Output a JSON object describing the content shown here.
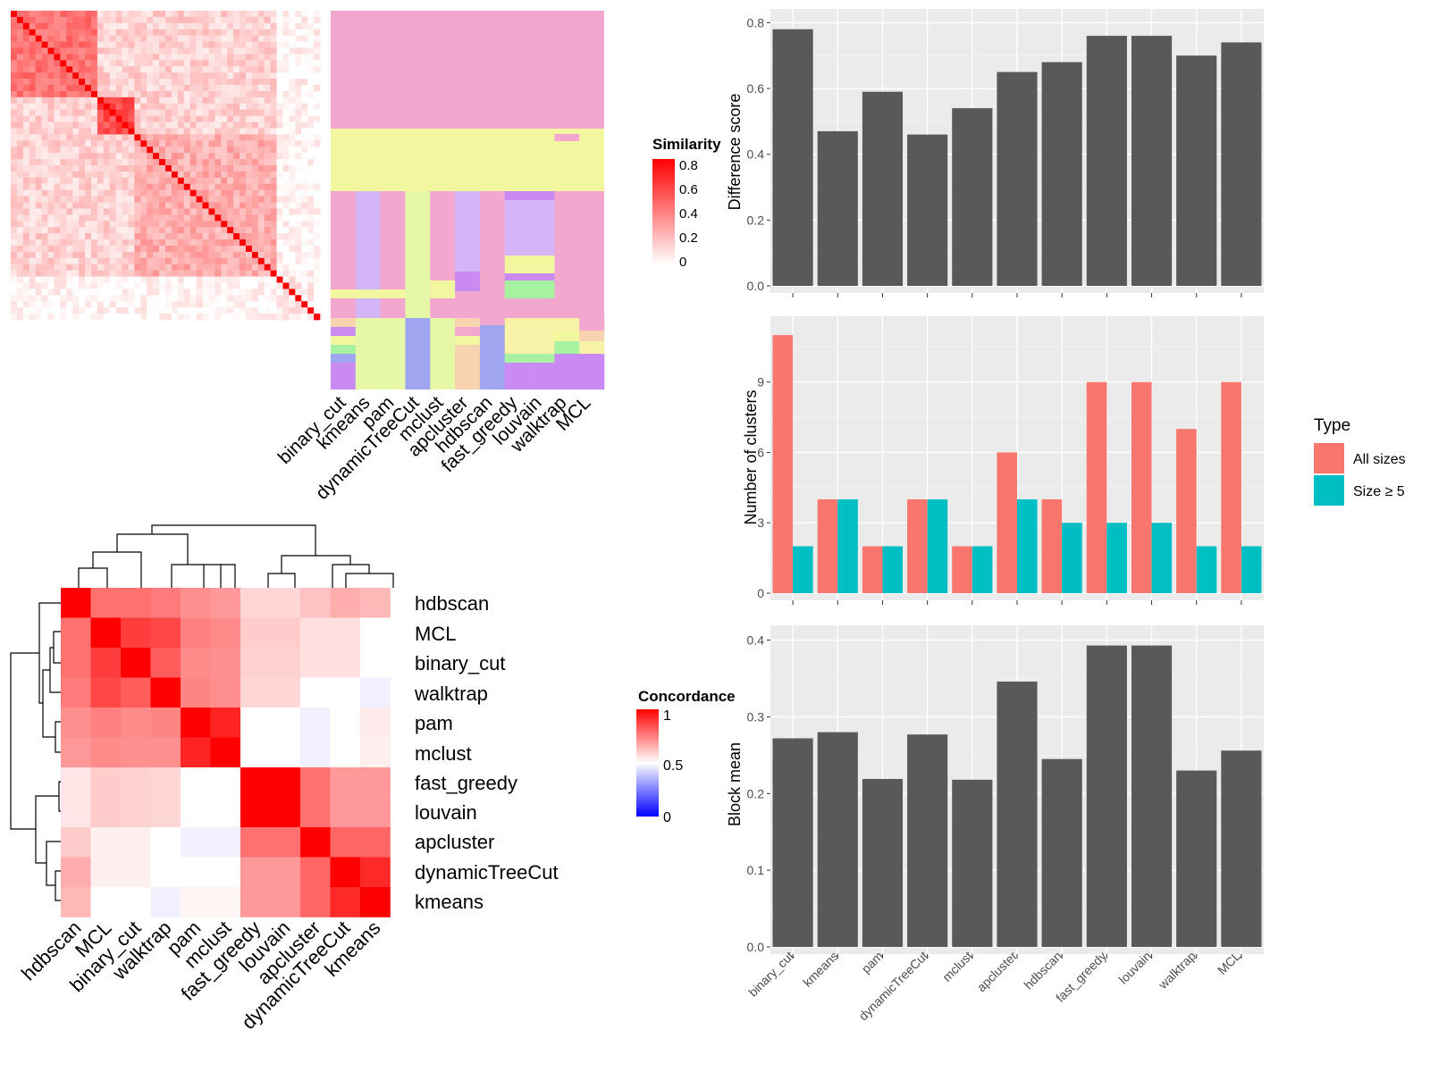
{
  "colors": {
    "panel_bg": "#ebebeb",
    "grid_major": "#ffffff",
    "bar": "#595959",
    "all_sizes": "#f8766d",
    "size_ge5": "#00bfc4",
    "heat_high": "#ff0000",
    "heat_mid": "#ffffff",
    "heat_low": "#0000ff"
  },
  "chart_data": [
    {
      "id": "similarity_heatmap",
      "type": "heatmap",
      "legend_title": "Similarity",
      "legend_ticks": [
        "0.8",
        "0.6",
        "0.4",
        "0.2",
        "0"
      ],
      "n_cells": 50,
      "value_range": [
        0,
        0.85
      ]
    },
    {
      "id": "cluster_assignment_heatmap",
      "type": "heatmap",
      "columns": [
        "binary_cut",
        "kmeans",
        "pam",
        "dynamicTreeCut",
        "mclust",
        "apcluster",
        "hdbscan",
        "fast_greedy",
        "louvain",
        "walktrap",
        "MCL"
      ],
      "n_rows": 50
    },
    {
      "id": "concordance_heatmap",
      "type": "heatmap",
      "legend_title": "Concordance",
      "legend_ticks": [
        "1",
        "0.5",
        "0"
      ],
      "rows": [
        "hdbscan",
        "MCL",
        "binary_cut",
        "walktrap",
        "pam",
        "mclust",
        "fast_greedy",
        "louvain",
        "apcluster",
        "dynamicTreeCut",
        "kmeans"
      ],
      "columns": [
        "hdbscan",
        "MCL",
        "binary_cut",
        "walktrap",
        "pam",
        "mclust",
        "fast_greedy",
        "louvain",
        "apcluster",
        "dynamicTreeCut",
        "kmeans"
      ],
      "values": [
        [
          1.0,
          0.78,
          0.78,
          0.76,
          0.72,
          0.7,
          0.58,
          0.58,
          0.62,
          0.66,
          0.64
        ],
        [
          0.78,
          1.0,
          0.88,
          0.86,
          0.75,
          0.73,
          0.6,
          0.6,
          0.56,
          0.56,
          0.5
        ],
        [
          0.78,
          0.88,
          1.0,
          0.82,
          0.73,
          0.72,
          0.59,
          0.59,
          0.56,
          0.56,
          0.5
        ],
        [
          0.76,
          0.86,
          0.82,
          1.0,
          0.74,
          0.72,
          0.58,
          0.58,
          0.5,
          0.5,
          0.47
        ],
        [
          0.72,
          0.75,
          0.73,
          0.74,
          1.0,
          0.93,
          0.5,
          0.5,
          0.47,
          0.5,
          0.54
        ],
        [
          0.7,
          0.73,
          0.72,
          0.72,
          0.93,
          1.0,
          0.5,
          0.5,
          0.47,
          0.5,
          0.53
        ],
        [
          0.55,
          0.6,
          0.59,
          0.58,
          0.5,
          0.5,
          1.0,
          1.0,
          0.78,
          0.7,
          0.7
        ],
        [
          0.55,
          0.6,
          0.59,
          0.58,
          0.5,
          0.5,
          1.0,
          1.0,
          0.78,
          0.7,
          0.7
        ],
        [
          0.6,
          0.53,
          0.53,
          0.5,
          0.47,
          0.47,
          0.78,
          0.78,
          1.0,
          0.8,
          0.8
        ],
        [
          0.66,
          0.53,
          0.53,
          0.5,
          0.5,
          0.5,
          0.7,
          0.7,
          0.8,
          1.0,
          0.92
        ],
        [
          0.64,
          0.5,
          0.5,
          0.47,
          0.52,
          0.52,
          0.7,
          0.7,
          0.8,
          0.92,
          1.0
        ]
      ]
    },
    {
      "id": "difference_score",
      "type": "bar",
      "categories": [
        "binary_cut",
        "kmeans",
        "pam",
        "dynamicTreeCut",
        "mclust",
        "apcluster",
        "hdbscan",
        "fast_greedy",
        "louvain",
        "walktrap",
        "MCL"
      ],
      "values": [
        0.78,
        0.47,
        0.59,
        0.46,
        0.54,
        0.65,
        0.68,
        0.76,
        0.76,
        0.7,
        0.74
      ],
      "ylabel": "Difference score",
      "ylim": [
        0,
        0.82
      ],
      "yticks": [
        "0.0",
        "0.2",
        "0.4",
        "0.6",
        "0.8"
      ],
      "grid": true
    },
    {
      "id": "number_of_clusters",
      "type": "bar",
      "categories": [
        "binary_cut",
        "kmeans",
        "pam",
        "dynamicTreeCut",
        "mclust",
        "apcluster",
        "hdbscan",
        "fast_greedy",
        "louvain",
        "walktrap",
        "MCL"
      ],
      "series": [
        {
          "name": "All sizes",
          "values": [
            11,
            4,
            2,
            4,
            2,
            6,
            4,
            9,
            9,
            7,
            9
          ]
        },
        {
          "name": "Size ≥ 5",
          "values": [
            2,
            4,
            2,
            4,
            2,
            4,
            3,
            3,
            3,
            2,
            2
          ]
        }
      ],
      "ylabel": "Number of clusters",
      "ylim": [
        0,
        11.5
      ],
      "yticks": [
        "0",
        "3",
        "6",
        "9"
      ],
      "legend_title": "Type",
      "legend_position": "right",
      "grid": true
    },
    {
      "id": "block_mean",
      "type": "bar",
      "categories": [
        "binary_cut",
        "kmeans",
        "pam",
        "dynamicTreeCut",
        "mclust",
        "apcluster",
        "hdbscan",
        "fast_greedy",
        "louvain",
        "walktrap",
        "MCL"
      ],
      "values": [
        0.272,
        0.28,
        0.219,
        0.277,
        0.218,
        0.346,
        0.245,
        0.393,
        0.393,
        0.23,
        0.256
      ],
      "ylabel": "Block mean",
      "ylim": [
        0,
        0.41
      ],
      "yticks": [
        "0.0",
        "0.1",
        "0.2",
        "0.3",
        "0.4"
      ],
      "grid": true
    }
  ]
}
